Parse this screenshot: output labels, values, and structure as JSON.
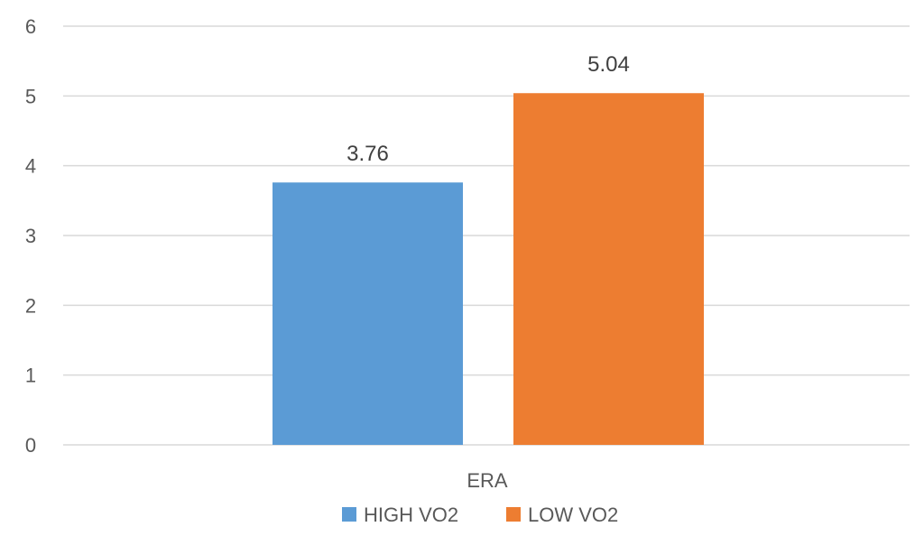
{
  "chart_data": {
    "type": "bar",
    "categories": [
      "ERA"
    ],
    "series": [
      {
        "name": "HIGH VO2",
        "values": [
          3.76
        ],
        "color": "#5B9BD5"
      },
      {
        "name": "LOW VO2",
        "values": [
          5.04
        ],
        "color": "#ED7D31"
      }
    ],
    "data_labels": [
      "3.76",
      "5.04"
    ],
    "ylim": [
      0,
      6
    ],
    "yticks": [
      0,
      1,
      2,
      3,
      4,
      5,
      6
    ],
    "grid": true,
    "legend_position": "bottom"
  }
}
